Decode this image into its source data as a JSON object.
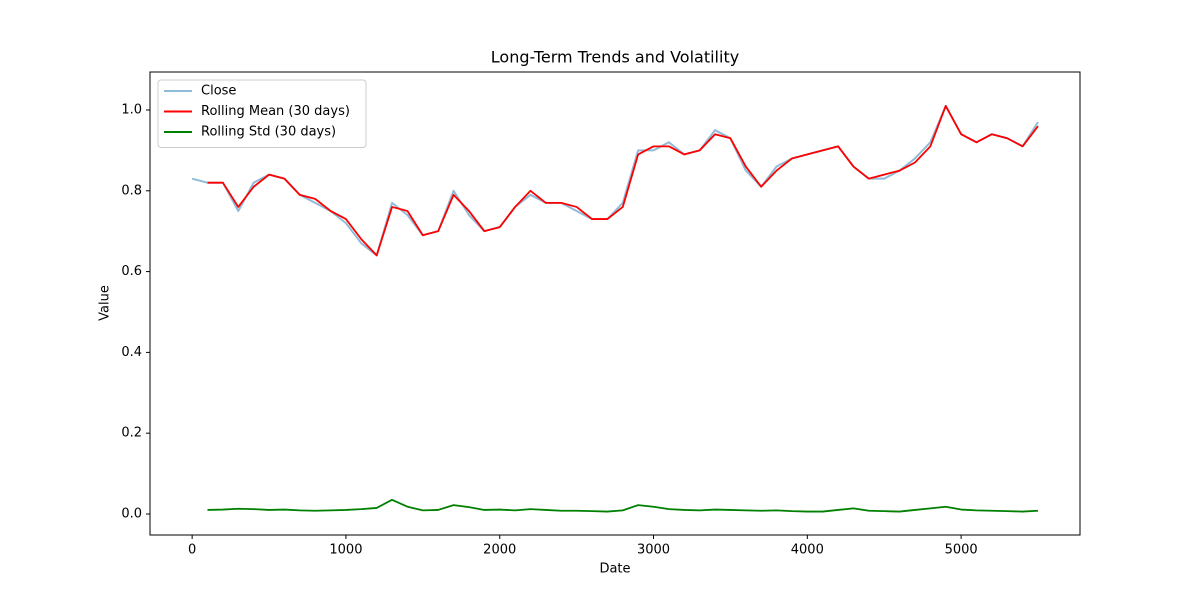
{
  "chart_data": {
    "type": "line",
    "title": "Long-Term Trends and Volatility",
    "xlabel": "Date",
    "ylabel": "Value",
    "x": [
      0,
      100,
      200,
      300,
      400,
      500,
      600,
      700,
      800,
      900,
      1000,
      1100,
      1200,
      1300,
      1400,
      1500,
      1600,
      1700,
      1800,
      1900,
      2000,
      2100,
      2200,
      2300,
      2400,
      2500,
      2600,
      2700,
      2800,
      2900,
      3000,
      3100,
      3200,
      3300,
      3400,
      3500,
      3600,
      3700,
      3800,
      3900,
      4000,
      4100,
      4200,
      4300,
      4400,
      4500,
      4600,
      4700,
      4800,
      4900,
      5000,
      5100,
      5200,
      5300,
      5400,
      5500
    ],
    "series": [
      {
        "name": "Close",
        "color": "#8fbbd9",
        "values": [
          0.83,
          0.82,
          0.82,
          0.75,
          0.82,
          0.84,
          0.83,
          0.79,
          0.77,
          0.75,
          0.72,
          0.67,
          0.64,
          0.77,
          0.74,
          0.69,
          0.7,
          0.8,
          0.74,
          0.7,
          0.71,
          0.76,
          0.79,
          0.77,
          0.77,
          0.75,
          0.73,
          0.73,
          0.77,
          0.9,
          0.9,
          0.92,
          0.89,
          0.9,
          0.95,
          0.93,
          0.85,
          0.81,
          0.86,
          0.88,
          0.89,
          0.9,
          0.91,
          0.86,
          0.83,
          0.83,
          0.85,
          0.88,
          0.92,
          1.01,
          0.94,
          0.92,
          0.94,
          0.93,
          0.91,
          0.97
        ]
      },
      {
        "name": "Rolling Mean (30 days)",
        "color": "#ff0000",
        "values": [
          null,
          0.82,
          0.82,
          0.76,
          0.81,
          0.84,
          0.83,
          0.79,
          0.78,
          0.75,
          0.73,
          0.68,
          0.64,
          0.76,
          0.75,
          0.69,
          0.7,
          0.79,
          0.75,
          0.7,
          0.71,
          0.76,
          0.8,
          0.77,
          0.77,
          0.76,
          0.73,
          0.73,
          0.76,
          0.89,
          0.91,
          0.91,
          0.89,
          0.9,
          0.94,
          0.93,
          0.86,
          0.81,
          0.85,
          0.88,
          0.89,
          0.9,
          0.91,
          0.86,
          0.83,
          0.84,
          0.85,
          0.87,
          0.91,
          1.01,
          0.94,
          0.92,
          0.94,
          0.93,
          0.91,
          0.96
        ]
      },
      {
        "name": "Rolling Std (30 days)",
        "color": "#008000",
        "values": [
          null,
          0.01,
          0.011,
          0.013,
          0.012,
          0.01,
          0.011,
          0.009,
          0.008,
          0.009,
          0.01,
          0.012,
          0.015,
          0.035,
          0.018,
          0.009,
          0.01,
          0.022,
          0.017,
          0.01,
          0.011,
          0.009,
          0.012,
          0.01,
          0.008,
          0.008,
          0.007,
          0.006,
          0.009,
          0.022,
          0.018,
          0.012,
          0.01,
          0.009,
          0.011,
          0.01,
          0.009,
          0.008,
          0.009,
          0.007,
          0.006,
          0.006,
          0.01,
          0.014,
          0.008,
          0.007,
          0.006,
          0.01,
          0.014,
          0.018,
          0.011,
          0.009,
          0.008,
          0.007,
          0.006,
          0.008
        ]
      }
    ],
    "xlim": [
      -274,
      5773
    ],
    "ylim": [
      -0.052,
      1.094
    ],
    "xticks": [
      0,
      1000,
      2000,
      3000,
      4000,
      5000
    ],
    "yticks": [
      {
        "value": 0,
        "label": "0.0"
      },
      {
        "value": 0.2,
        "label": "0.2"
      },
      {
        "value": 0.4,
        "label": "0.4"
      },
      {
        "value": 0.6,
        "label": "0.6"
      },
      {
        "value": 0.8,
        "label": "0.8"
      },
      {
        "value": 1.0,
        "label": "1.0"
      }
    ],
    "legend": "upper left",
    "grid": false
  }
}
